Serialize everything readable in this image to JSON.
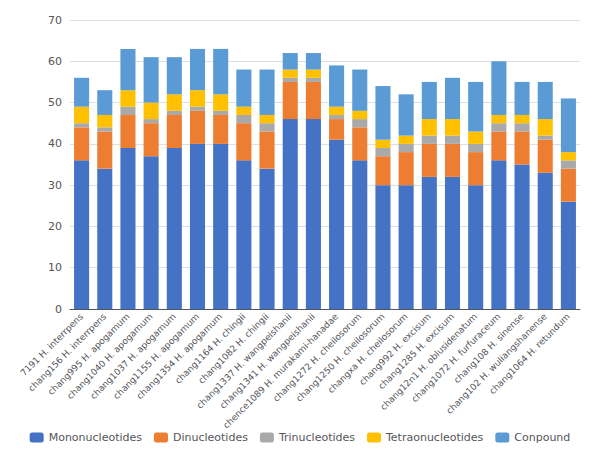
{
  "chart_data": {
    "type": "bar",
    "stacked": true,
    "categories": [
      "7191 H. interrpens",
      "chang156 H. interrpens",
      "chang995 H. apogamum",
      "chang1040 H. apogamum",
      "chang1037 H. apogamum",
      "chang1155 H. apogamum",
      "chang1354 H. apogamum",
      "chang1164 H. chingii",
      "chang1082 H. chingii",
      "chang1337 H. wangpeishanii",
      "chang1341 H. wangpeishanii",
      "chence1089 H. murakami-hanadae",
      "chang1272 H. cheilosorum",
      "chang1250 H. cheilosorum",
      "changxa H. cheilosorum",
      "chang992 H. excisum",
      "chang1285 H. excisum",
      "chang12n1 H. oblusidenatum",
      "chang1072 H. furfuraceum",
      "chang108 H. sinense",
      "chang102 H. wuliangshanense",
      "chang1064 H. retundum"
    ],
    "series": [
      {
        "name": "Mononucleotides",
        "color": "#4472c4",
        "values": [
          36,
          34,
          39,
          37,
          39,
          40,
          40,
          36,
          34,
          46,
          46,
          41,
          36,
          30,
          30,
          32,
          32,
          30,
          36,
          35,
          33,
          26
        ]
      },
      {
        "name": "Dinucleotides",
        "color": "#ed7d31",
        "values": [
          8,
          9,
          8,
          8,
          8,
          8,
          7,
          9,
          9,
          9,
          9,
          5,
          8,
          7,
          8,
          8,
          8,
          8,
          7,
          8,
          8,
          8
        ]
      },
      {
        "name": "Trinucleotides",
        "color": "#a9a9a9",
        "values": [
          1,
          1,
          2,
          1,
          1,
          1,
          1,
          2,
          2,
          1,
          1,
          1,
          2,
          2,
          2,
          2,
          2,
          2,
          2,
          2,
          1,
          2
        ]
      },
      {
        "name": "Tetraonucleotides",
        "color": "#ffc000",
        "values": [
          4,
          3,
          4,
          4,
          4,
          4,
          4,
          2,
          2,
          2,
          2,
          2,
          2,
          2,
          2,
          4,
          4,
          3,
          2,
          2,
          4,
          2
        ]
      },
      {
        "name": "Conpound",
        "color": "#5b9bd5",
        "values": [
          7,
          6,
          10,
          11,
          9,
          10,
          11,
          9,
          11,
          4,
          4,
          10,
          10,
          13,
          10,
          9,
          10,
          12,
          13,
          8,
          9,
          13
        ]
      }
    ],
    "ylim": [
      0,
      70
    ],
    "yticks": [
      0,
      10,
      20,
      30,
      40,
      50,
      60,
      70
    ],
    "grid": true,
    "legend": "bottom"
  }
}
